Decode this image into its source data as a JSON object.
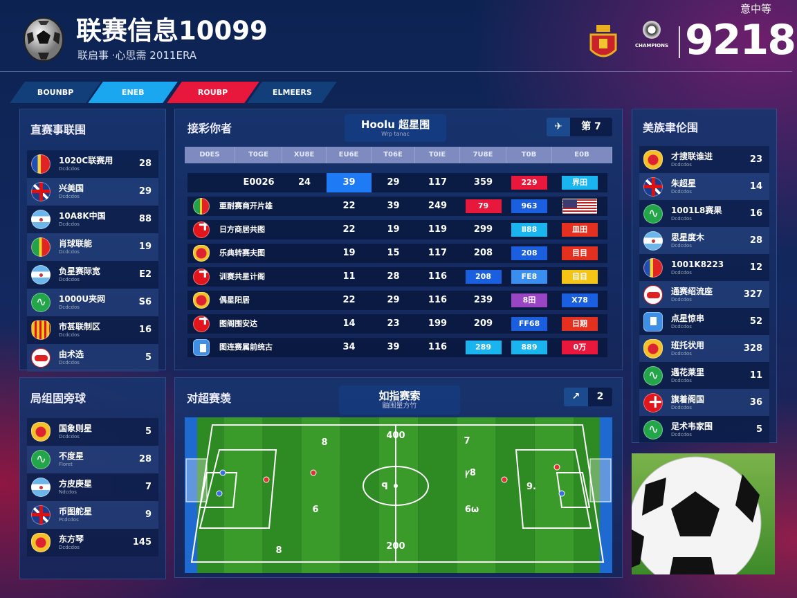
{
  "header": {
    "title": "联赛信息10099",
    "subtitle": "联启事 ·心思需 2011ERA",
    "corner_label": "意中等",
    "score": "9218",
    "league_logo_text": "CHAMPIONS"
  },
  "tabs": [
    {
      "label": "BOUNBP",
      "color": "#123e7a"
    },
    {
      "label": "ENEB",
      "color": "#1aa7f0"
    },
    {
      "label": "ROUBP",
      "color": "#e8183c"
    },
    {
      "label": "ELMEERS",
      "color": "#123e7a"
    }
  ],
  "left_panel": {
    "title": "直赛事联围",
    "items": [
      {
        "icon": "ic-tri",
        "name": "1020C联赛用",
        "sub": "Dcdcdos",
        "value": "28"
      },
      {
        "icon": "ic-uk",
        "name": "兴美国",
        "sub": "Dcdcdos",
        "value": "29"
      },
      {
        "icon": "ic-arg",
        "name": "10A8K中国",
        "sub": "Dcdcdos",
        "value": "88"
      },
      {
        "icon": "ic-ita",
        "name": "肖球联能",
        "sub": "Dcdcdos",
        "value": "19"
      },
      {
        "icon": "ic-arg",
        "name": "负星赛际宽",
        "sub": "Dcdcdos",
        "value": "E2"
      },
      {
        "icon": "ic-green",
        "name": "1000U夹网",
        "sub": "Dcdcdos",
        "value": "S6"
      },
      {
        "icon": "ic-stripes",
        "name": "市甚联制区",
        "sub": "Dcdcdos",
        "value": "16"
      },
      {
        "icon": "ic-emblem",
        "name": "由术选",
        "sub": "Dcdcdos",
        "value": "5"
      }
    ]
  },
  "left_panel2": {
    "title": "局组固旁球",
    "items": [
      {
        "icon": "ic-crest",
        "name": "国象则星",
        "sub": "Dcdcdos",
        "value": "5"
      },
      {
        "icon": "ic-green",
        "name": "不度星",
        "sub": "Floret",
        "value": "28"
      },
      {
        "icon": "ic-arg",
        "name": "方皮庚星",
        "sub": "Ndcdos",
        "value": "7"
      },
      {
        "icon": "ic-uk",
        "name": "币图舵星",
        "sub": "Pcdcdos",
        "value": "9"
      },
      {
        "icon": "ic-crest",
        "name": "东方琴",
        "sub": "Dcdcdos",
        "value": "145"
      }
    ]
  },
  "right_panel": {
    "title": "美族聿伦围",
    "items": [
      {
        "icon": "ic-crest",
        "name": "才搜联谁进",
        "sub": "Dcdcdos",
        "value": "23"
      },
      {
        "icon": "ic-uk",
        "name": "朱超星",
        "sub": "Dcdcdos",
        "value": "14"
      },
      {
        "icon": "ic-green",
        "name": "1001L8赛果",
        "sub": "Dcdcdos",
        "value": "16"
      },
      {
        "icon": "ic-arg",
        "name": "思星度木",
        "sub": "Dcdcdos",
        "value": "28"
      },
      {
        "icon": "ic-tri",
        "name": "1001K8223",
        "sub": "Dcdcdos",
        "value": "12"
      },
      {
        "icon": "ic-emblem",
        "name": "通赛绍流座",
        "sub": "Dcdcdos",
        "value": "327"
      },
      {
        "icon": "ic-shield",
        "name": "点星惊串",
        "sub": "Dcdcdos",
        "value": "52"
      },
      {
        "icon": "ic-crest",
        "name": "班托状用",
        "sub": "Dcdcdos",
        "value": "328"
      },
      {
        "icon": "ic-green",
        "name": "遇花莱里",
        "sub": "Dcdcdos",
        "value": "11"
      },
      {
        "icon": "ic-swiss",
        "name": "旗着阁国",
        "sub": "Dcdcdos",
        "value": "36"
      },
      {
        "icon": "ic-green",
        "name": "足术韦家围",
        "sub": "Dcdcdos",
        "value": "5"
      }
    ]
  },
  "standings": {
    "title": "接彩你者",
    "center_title": "Hoolu 超星围",
    "center_sub": "Wrp tanac",
    "toggle": [
      "✈",
      "第 7"
    ],
    "columns": [
      "D0ES",
      "T0GE",
      "XU8E",
      "EU6E",
      "T06E",
      "T0IE",
      "7U8E",
      "T0B",
      "E0B"
    ],
    "first_row": {
      "name": "E0026",
      "cells": [
        "24",
        "39",
        "29",
        "117",
        "359",
        "229",
        "界田"
      ],
      "highlight": "#1f7af5",
      "badge_colors": [
        "#e8183c",
        "#1ab4ee"
      ]
    },
    "rows": [
      {
        "icon": "ic-ita",
        "name": "亜耐赛商开片雄",
        "vals": [
          "22",
          "39",
          "249"
        ],
        "badges": [
          {
            "t": "79",
            "c": "#e8183c"
          },
          {
            "t": "963",
            "c": "#1a5fe0"
          },
          {
            "t": "",
            "c": "flag-us"
          }
        ]
      },
      {
        "icon": "ic-swiss",
        "name": "日方商居共图",
        "vals": [
          "22",
          "19",
          "119",
          "299"
        ],
        "badges": [
          {
            "t": "Ⅱ88",
            "c": "#1ab4ee"
          },
          {
            "t": "皿田",
            "c": "#e3301f"
          }
        ]
      },
      {
        "icon": "ic-crest",
        "name": "乐典转赛夫图",
        "vals": [
          "19",
          "15",
          "117",
          "208"
        ],
        "badges": [
          {
            "t": "208",
            "c": "#1a5fe0"
          },
          {
            "t": "目目",
            "c": "#e3301f"
          }
        ]
      },
      {
        "icon": "ic-swiss",
        "name": "训赛共星计阁",
        "vals": [
          "11",
          "28",
          "116"
        ],
        "badges": [
          {
            "t": "208",
            "c": "#1a5fe0"
          },
          {
            "t": "FE8",
            "c": "#3a8ef0"
          },
          {
            "t": "目目",
            "c": "#f4c417"
          }
        ]
      },
      {
        "icon": "ic-crest",
        "name": "偶星阳居",
        "vals": [
          "22",
          "29",
          "116",
          "239"
        ],
        "badges": [
          {
            "t": "8田",
            "c": "#9a45c4"
          },
          {
            "t": "X78",
            "c": "#1a5fe0"
          }
        ]
      },
      {
        "icon": "ic-swiss",
        "name": "图阁围安达",
        "vals": [
          "14",
          "23",
          "199",
          "209"
        ],
        "badges": [
          {
            "t": "FF68",
            "c": "#1a5fe0"
          },
          {
            "t": "日期",
            "c": "#e3301f"
          }
        ]
      },
      {
        "icon": "ic-shield",
        "name": "图连赛属前统古",
        "vals": [
          "34",
          "39",
          "116"
        ],
        "badges": [
          {
            "t": "289",
            "c": "#1ab4ee"
          },
          {
            "t": "889",
            "c": "#1ab4ee"
          },
          {
            "t": "0万",
            "c": "#e8183c"
          }
        ]
      }
    ]
  },
  "pitch": {
    "title": "对超赛羡",
    "center_title": "如指赛索",
    "center_sub": "鼬围量方竹",
    "toggle": [
      "↗",
      "2"
    ],
    "labels": [
      "400",
      "200",
      "8",
      "7",
      "6",
      "6ω",
      "8",
      "ꝩ8",
      "9.",
      "ꟼ"
    ]
  }
}
